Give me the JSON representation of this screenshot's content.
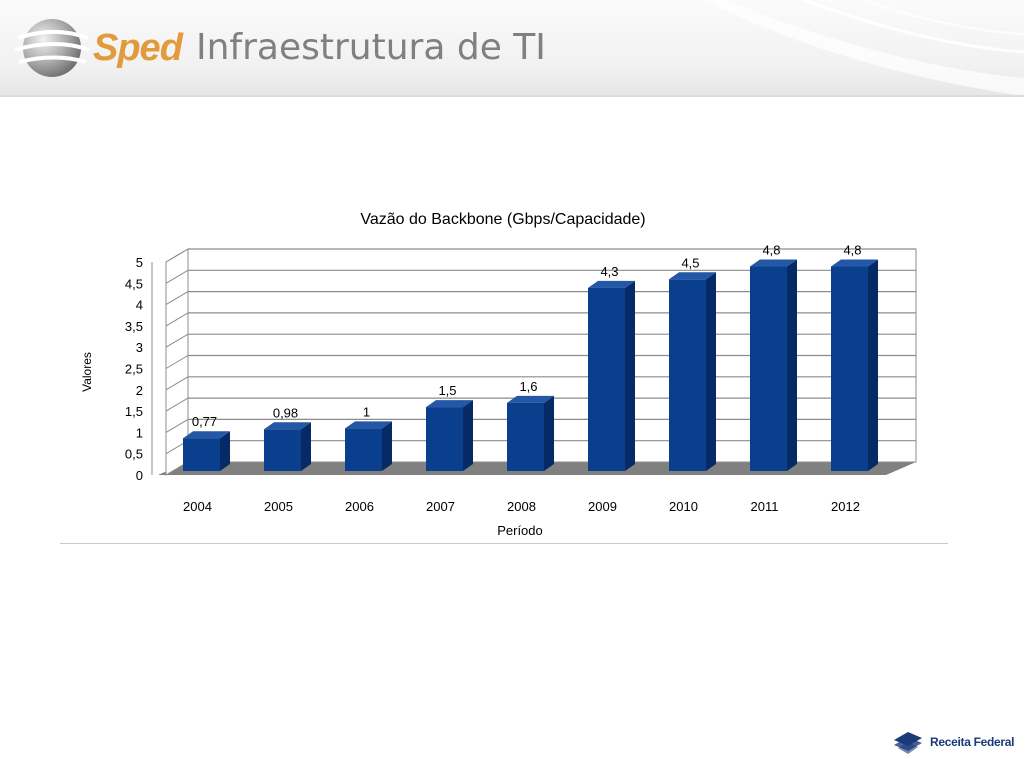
{
  "header": {
    "logo_text": "Sped",
    "title": "Infraestrutura de TI"
  },
  "footer": {
    "logo_text": "Receita Federal"
  },
  "colors": {
    "bar_front": "#0a3f8e",
    "bar_side": "#062a66",
    "bar_top": "#2457a6",
    "accent": "#e39a3c",
    "title_gray": "#808080",
    "brand_blue": "#1a3a78"
  },
  "chart_data": {
    "type": "bar",
    "title": "Vazão do Backbone (Gbps/Capacidade)",
    "xlabel": "Período",
    "ylabel": "Valores",
    "categories": [
      "2004",
      "2005",
      "2006",
      "2007",
      "2008",
      "2009",
      "2010",
      "2011",
      "2012"
    ],
    "values": [
      0.77,
      0.98,
      1,
      1.5,
      1.6,
      4.3,
      4.5,
      4.8,
      4.8
    ],
    "data_labels": [
      "0,77",
      "0,98",
      "1",
      "1,5",
      "1,6",
      "4,3",
      "4,5",
      "4,8",
      "4,8"
    ],
    "y_ticks": [
      0,
      0.5,
      1,
      1.5,
      2,
      2.5,
      3,
      3.5,
      4,
      4.5,
      5
    ],
    "y_tick_labels": [
      "0",
      "0,5",
      "1",
      "1,5",
      "2",
      "2,5",
      "3",
      "3,5",
      "4",
      "4,5",
      "5"
    ],
    "ylim": [
      0,
      5
    ],
    "grid": true,
    "legend": "none",
    "style": "3d"
  }
}
